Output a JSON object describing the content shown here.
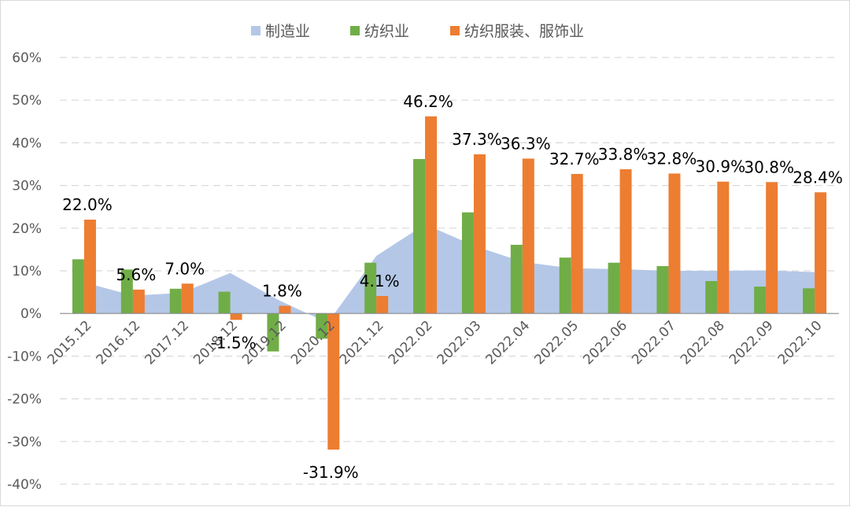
{
  "chart_data": {
    "type": "bar",
    "title": "",
    "xlabel": "",
    "ylabel": "",
    "ylim": [
      -40,
      60
    ],
    "yticks": [
      -40,
      -30,
      -20,
      -10,
      0,
      10,
      20,
      30,
      40,
      50,
      60
    ],
    "ytick_labels": [
      "-40%",
      "-30%",
      "-20%",
      "-10%",
      "0%",
      "10%",
      "20%",
      "30%",
      "40%",
      "50%",
      "60%"
    ],
    "grid": true,
    "legend_position": "top",
    "categories": [
      "2015.12",
      "2016.12",
      "2017.12",
      "2018.12",
      "2019.12",
      "2020.12",
      "2021.12",
      "2022.02",
      "2022.03",
      "2022.04",
      "2022.05",
      "2022.06",
      "2022.07",
      "2022.08",
      "2022.09",
      "2022.10"
    ],
    "series": [
      {
        "name": "制造业",
        "kind": "area",
        "color": "#b4c7e7",
        "values": [
          7.3,
          4.2,
          4.8,
          9.5,
          3.1,
          -2.2,
          13.5,
          20.9,
          15.9,
          12.1,
          10.6,
          10.4,
          10.0,
          10.0,
          10.1,
          9.7
        ]
      },
      {
        "name": "纺织业",
        "kind": "bar",
        "color": "#70ad47",
        "values": [
          12.7,
          10.3,
          5.8,
          5.1,
          -8.9,
          -5.9,
          11.9,
          36.2,
          23.7,
          16.1,
          13.1,
          11.9,
          11.1,
          7.6,
          6.3,
          5.9
        ]
      },
      {
        "name": "纺织服装、服饰业",
        "kind": "bar",
        "color": "#ed7d31",
        "values": [
          22.0,
          5.6,
          7.0,
          -1.5,
          1.8,
          -31.9,
          4.1,
          46.2,
          37.3,
          36.3,
          32.7,
          33.8,
          32.8,
          30.9,
          30.8,
          28.4
        ],
        "data_labels": [
          "22.0%",
          "5.6%",
          "7.0%",
          "-1.5%",
          "1.8%",
          "-31.9%",
          "4.1%",
          "46.2%",
          "37.3%",
          "36.3%",
          "32.7%",
          "33.8%",
          "32.8%",
          "30.9%",
          "30.8%",
          "28.4%"
        ]
      }
    ]
  }
}
